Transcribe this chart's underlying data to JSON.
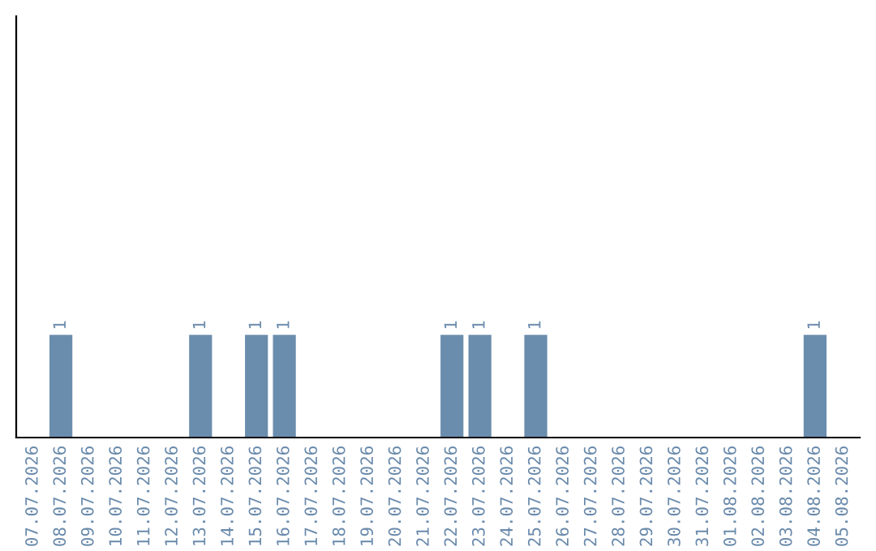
{
  "chart_data": {
    "type": "bar",
    "categories": [
      "07.07.2026",
      "08.07.2026",
      "09.07.2026",
      "10.07.2026",
      "11.07.2026",
      "12.07.2026",
      "13.07.2026",
      "14.07.2026",
      "15.07.2026",
      "16.07.2026",
      "17.07.2026",
      "18.07.2026",
      "19.07.2026",
      "20.07.2026",
      "21.07.2026",
      "22.07.2026",
      "23.07.2026",
      "24.07.2026",
      "25.07.2026",
      "26.07.2026",
      "27.07.2026",
      "28.07.2026",
      "29.07.2026",
      "30.07.2026",
      "31.07.2026",
      "01.08.2026",
      "02.08.2026",
      "03.08.2026",
      "04.08.2026",
      "05.08.2026"
    ],
    "values": [
      0,
      1,
      0,
      0,
      0,
      0,
      1,
      0,
      1,
      1,
      0,
      0,
      0,
      0,
      0,
      1,
      1,
      0,
      1,
      0,
      0,
      0,
      0,
      0,
      0,
      0,
      0,
      0,
      1,
      0
    ],
    "value_labels": [
      null,
      "1",
      null,
      null,
      null,
      null,
      "1",
      null,
      "1",
      "1",
      null,
      null,
      null,
      null,
      null,
      "1",
      "1",
      null,
      "1",
      null,
      null,
      null,
      null,
      null,
      null,
      null,
      null,
      null,
      "1",
      null
    ],
    "color": "#6b8dad",
    "ylim": [
      0,
      4.1
    ],
    "tick_labels": "x",
    "grid": false,
    "legend": false
  }
}
